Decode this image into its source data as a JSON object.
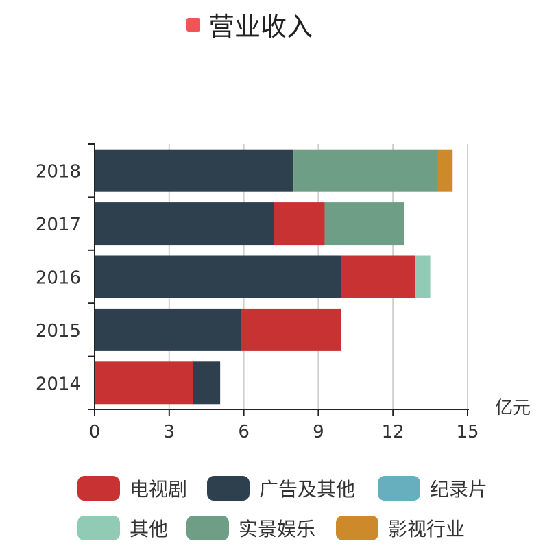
{
  "title_legend": {
    "label": "营业收入",
    "color": "#f05454"
  },
  "legend": [
    {
      "name": "电视剧",
      "color": "#c83233"
    },
    {
      "name": "广告及其他",
      "color": "#2e3f4d"
    },
    {
      "name": "纪录片",
      "color": "#67aebf"
    },
    {
      "name": "其他",
      "color": "#91cbb5"
    },
    {
      "name": "实景娱乐",
      "color": "#6e9e85"
    },
    {
      "name": "影视行业",
      "color": "#cc8a2a"
    }
  ],
  "chart_data": {
    "type": "bar",
    "orientation": "horizontal",
    "stacked": true,
    "categories": [
      "2014",
      "2015",
      "2016",
      "2017",
      "2018"
    ],
    "xlabel": "亿元",
    "xlim": [
      0,
      15
    ],
    "xticks": [
      "0",
      "3",
      "6",
      "9",
      "12",
      "15"
    ],
    "grid": true,
    "series": [
      {
        "name": "广告及其他",
        "color": "#2e3f4d",
        "values": [
          null,
          5.9,
          9.9,
          7.2,
          8.0
        ]
      },
      {
        "name": "电视剧",
        "color": "#c83233",
        "values": [
          3.95,
          4.0,
          3.0,
          2.05,
          null
        ]
      },
      {
        "name": "广告及其他",
        "color": "#2e3f4d",
        "values": [
          1.1,
          null,
          null,
          null,
          null
        ]
      },
      {
        "name": "实景娱乐",
        "color": "#6e9e85",
        "values": [
          null,
          null,
          null,
          3.2,
          5.8
        ]
      },
      {
        "name": "其他",
        "color": "#91cbb5",
        "values": [
          null,
          null,
          0.6,
          null,
          null
        ]
      },
      {
        "name": "影视行业",
        "color": "#cc8a2a",
        "values": [
          null,
          null,
          null,
          null,
          0.6
        ]
      }
    ]
  }
}
